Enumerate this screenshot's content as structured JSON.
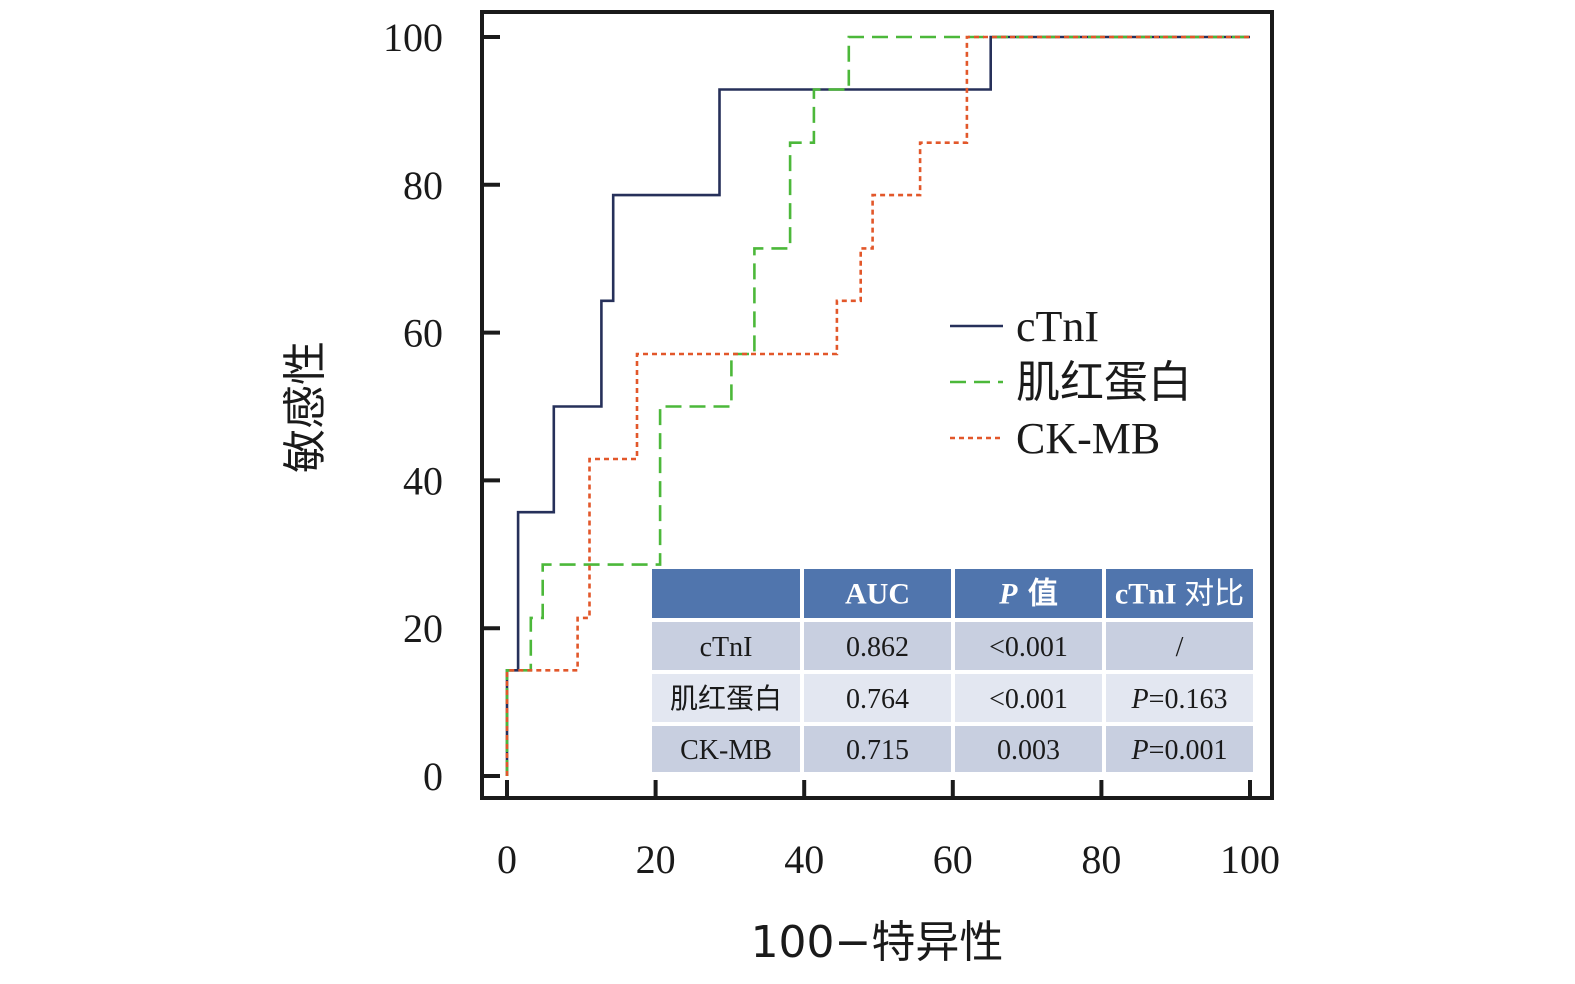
{
  "chart_data": {
    "type": "line",
    "title": "",
    "xlabel": "100−特异性",
    "ylabel": "敏感性",
    "xlim": [
      0,
      100
    ],
    "ylim": [
      0,
      100
    ],
    "xticks": [
      "0",
      "20",
      "40",
      "60",
      "80",
      "100"
    ],
    "yticks": [
      "0",
      "20",
      "40",
      "60",
      "80",
      "100"
    ],
    "step": true,
    "grid": false,
    "legend_position": "right-middle",
    "series": [
      {
        "name": "cTnI",
        "color": "#26305a",
        "dash": "solid",
        "points": [
          [
            0,
            0
          ],
          [
            0,
            14.3
          ],
          [
            1.5,
            14.3
          ],
          [
            1.5,
            35.7
          ],
          [
            6.3,
            35.7
          ],
          [
            6.3,
            50
          ],
          [
            12.7,
            50
          ],
          [
            12.7,
            64.3
          ],
          [
            14.3,
            64.3
          ],
          [
            14.3,
            78.6
          ],
          [
            28.6,
            78.6
          ],
          [
            28.6,
            92.9
          ],
          [
            65.1,
            92.9
          ],
          [
            65.1,
            100
          ],
          [
            100,
            100
          ]
        ]
      },
      {
        "name": "肌红蛋白",
        "color": "#4cb83a",
        "dash": "dashed",
        "points": [
          [
            0,
            0
          ],
          [
            0,
            14.3
          ],
          [
            3.2,
            14.3
          ],
          [
            3.2,
            21.4
          ],
          [
            4.8,
            21.4
          ],
          [
            4.8,
            28.6
          ],
          [
            20.6,
            28.6
          ],
          [
            20.6,
            50
          ],
          [
            30.2,
            50
          ],
          [
            30.2,
            57.1
          ],
          [
            33.3,
            57.1
          ],
          [
            33.3,
            71.4
          ],
          [
            38.1,
            71.4
          ],
          [
            38.1,
            85.7
          ],
          [
            41.3,
            85.7
          ],
          [
            41.3,
            92.9
          ],
          [
            46,
            92.9
          ],
          [
            46,
            100
          ],
          [
            100,
            100
          ]
        ]
      },
      {
        "name": "CK-MB",
        "color": "#e2572a",
        "dash": "dotted",
        "points": [
          [
            0,
            0
          ],
          [
            0,
            14.3
          ],
          [
            9.5,
            14.3
          ],
          [
            9.5,
            21.4
          ],
          [
            11.1,
            21.4
          ],
          [
            11.1,
            42.9
          ],
          [
            17.5,
            42.9
          ],
          [
            17.5,
            57.1
          ],
          [
            44.4,
            57.1
          ],
          [
            44.4,
            64.3
          ],
          [
            47.6,
            64.3
          ],
          [
            47.6,
            71.4
          ],
          [
            49.2,
            71.4
          ],
          [
            49.2,
            78.6
          ],
          [
            55.6,
            78.6
          ],
          [
            55.6,
            85.7
          ],
          [
            61.9,
            85.7
          ],
          [
            61.9,
            100
          ],
          [
            100,
            100
          ]
        ]
      }
    ],
    "table": {
      "headers": [
        "",
        "AUC",
        "P 值",
        "cTnI 对比"
      ],
      "rows": [
        [
          "cTnI",
          "0.862",
          "<0.001",
          "/"
        ],
        [
          "肌红蛋白",
          "0.764",
          "<0.001",
          "P=0.163"
        ],
        [
          "CK-MB",
          "0.715",
          "0.003",
          "P=0.001"
        ]
      ]
    }
  },
  "colors": {
    "table_header": "#5075ad",
    "table_row_a": "#c8cfe0",
    "table_row_b": "#e3e7f1"
  }
}
